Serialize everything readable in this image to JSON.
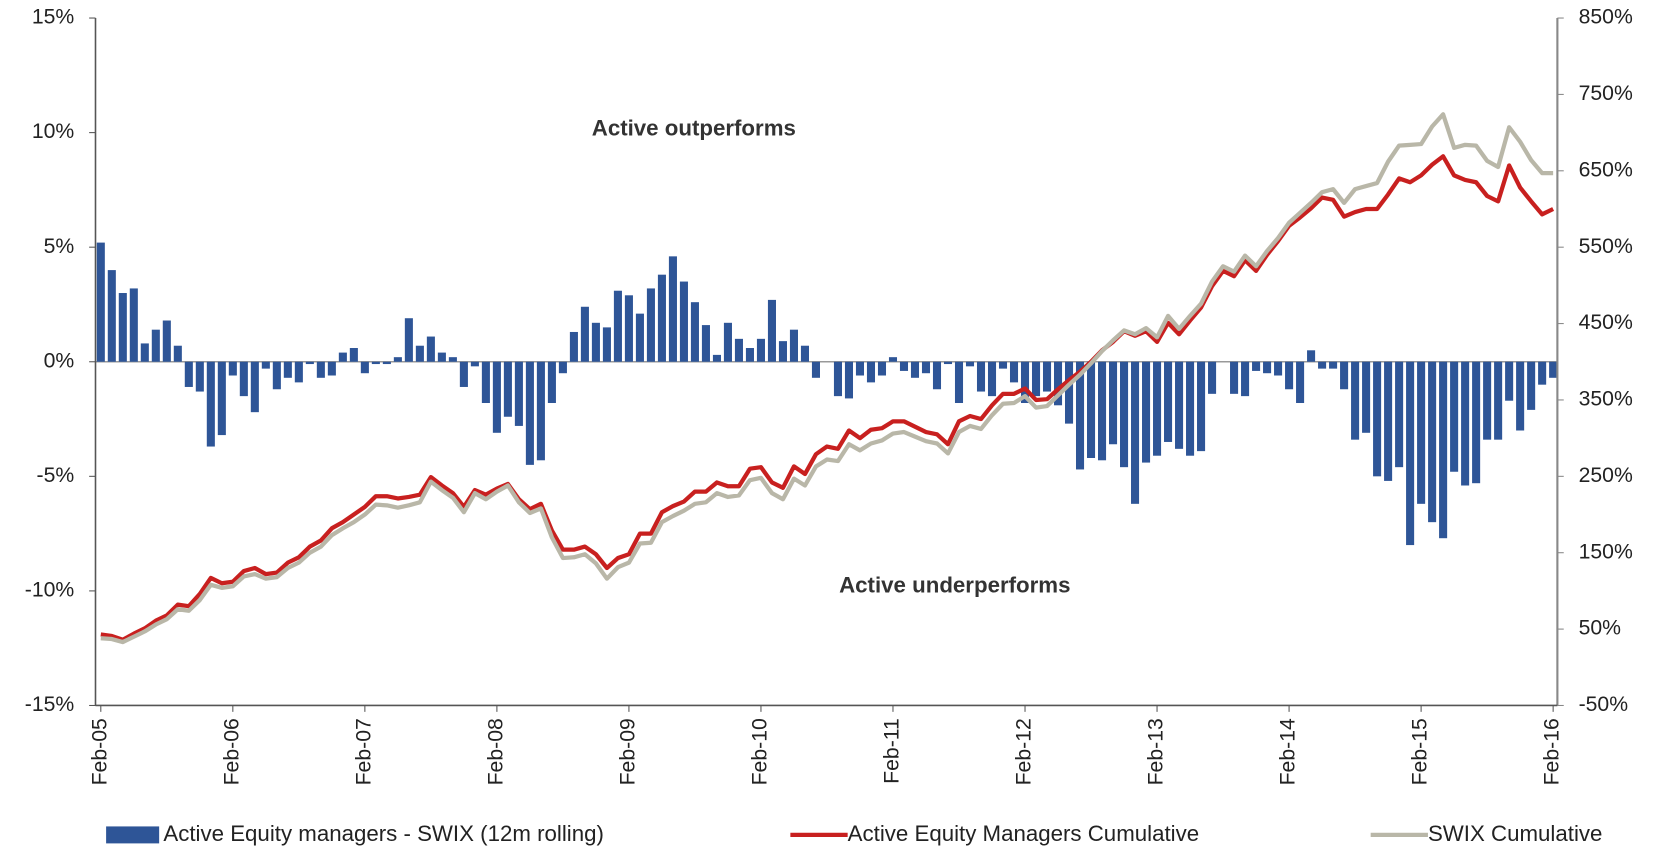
{
  "chart_data": {
    "type": "bar_line",
    "categories": [
      "Feb-05",
      null,
      null,
      null,
      null,
      null,
      null,
      null,
      null,
      null,
      null,
      null,
      "Feb-06",
      null,
      null,
      null,
      null,
      null,
      null,
      null,
      null,
      null,
      null,
      null,
      "Feb-07",
      null,
      null,
      null,
      null,
      null,
      null,
      null,
      null,
      null,
      null,
      null,
      "Feb-08",
      null,
      null,
      null,
      null,
      null,
      null,
      null,
      null,
      null,
      null,
      null,
      "Feb-09",
      null,
      null,
      null,
      null,
      null,
      null,
      null,
      null,
      null,
      null,
      null,
      "Feb-10",
      null,
      null,
      null,
      null,
      null,
      null,
      null,
      null,
      null,
      null,
      null,
      "Feb-11",
      null,
      null,
      null,
      null,
      null,
      null,
      null,
      null,
      null,
      null,
      null,
      "Feb-12",
      null,
      null,
      null,
      null,
      null,
      null,
      null,
      null,
      null,
      null,
      null,
      "Feb-13",
      null,
      null,
      null,
      null,
      null,
      null,
      null,
      null,
      null,
      null,
      null,
      "Feb-14",
      null,
      null,
      null,
      null,
      null,
      null,
      null,
      null,
      null,
      null,
      null,
      "Feb-15",
      null,
      null,
      null,
      null,
      null,
      null,
      null,
      null,
      null,
      null,
      null,
      "Feb-16"
    ],
    "series": [
      {
        "name": "Active Equity managers - SWIX (12m rolling)",
        "type": "bar",
        "color": "#2e5597",
        "values": [
          5.2,
          4.0,
          3.0,
          3.2,
          0.8,
          1.4,
          1.8,
          0.7,
          -1.1,
          -1.3,
          -3.7,
          -3.2,
          -0.6,
          -1.5,
          -2.2,
          -0.3,
          -1.2,
          -0.7,
          -0.9,
          -0.1,
          -0.7,
          -0.6,
          0.4,
          0.6,
          -0.5,
          -0.1,
          -0.1,
          0.2,
          1.9,
          0.7,
          1.1,
          0.4,
          0.2,
          -1.1,
          -0.2,
          -1.8,
          -3.1,
          -2.4,
          -2.8,
          -4.5,
          -4.3,
          -1.8,
          -0.5,
          1.3,
          2.4,
          1.7,
          1.5,
          3.1,
          2.9,
          2.1,
          3.2,
          3.8,
          4.6,
          3.5,
          2.6,
          1.6,
          0.3,
          1.7,
          1.0,
          0.6,
          1.0,
          2.7,
          0.9,
          1.4,
          0.7,
          -0.7,
          0.0,
          -1.5,
          -1.6,
          -0.6,
          -0.9,
          -0.6,
          0.2,
          -0.4,
          -0.7,
          -0.5,
          -1.2,
          -0.1,
          -1.8,
          -0.2,
          -1.3,
          -1.5,
          -0.3,
          -0.9,
          -1.8,
          -1.5,
          -1.3,
          -1.9,
          -2.7,
          -4.7,
          -4.2,
          -4.3,
          -3.6,
          -4.6,
          -6.2,
          -4.4,
          -4.1,
          -3.5,
          -3.8,
          -4.1,
          -3.9,
          -1.4,
          0.0,
          -1.4,
          -1.5,
          -0.4,
          -0.5,
          -0.6,
          -1.2,
          -1.8,
          0.5,
          -0.3,
          -0.3,
          -1.2,
          -3.4,
          -3.1,
          -5.0,
          -5.2,
          -4.6,
          -8.0,
          -6.2,
          -7.0,
          -7.7,
          -4.8,
          -5.4,
          -5.3,
          -3.4,
          -3.4,
          -1.7,
          -3.0,
          -2.1,
          -1.0,
          -0.7
        ]
      },
      {
        "name": "Active Equity Managers Cumulative",
        "type": "line",
        "axis": "y2",
        "color": "#c8201f",
        "values": [
          43,
          41,
          36,
          44,
          51,
          61,
          68,
          82,
          80,
          96,
          117,
          110,
          112,
          126,
          130,
          122,
          124,
          137,
          144,
          158,
          166,
          182,
          190,
          200,
          210,
          224,
          224,
          221,
          223,
          226,
          249,
          238,
          228,
          210,
          232,
          226,
          234,
          240,
          220,
          207,
          214,
          179,
          154,
          154,
          158,
          148,
          130,
          143,
          148,
          175,
          175,
          203,
          211,
          217,
          230,
          230,
          242,
          237,
          237,
          260,
          262,
          242,
          235,
          263,
          253,
          279,
          289,
          286,
          310,
          300,
          311,
          313,
          322,
          322,
          315,
          308,
          305,
          292,
          322,
          329,
          325,
          343,
          358,
          358,
          365,
          350,
          351,
          364,
          376,
          387,
          400,
          415,
          426,
          440,
          434,
          440,
          426,
          451,
          436,
          454,
          471,
          499,
          519,
          512,
          533,
          519,
          540,
          558,
          578,
          589,
          601,
          615,
          612,
          590,
          596,
          600,
          600,
          619,
          640,
          635,
          644,
          658,
          669,
          644,
          638,
          635,
          617,
          610,
          657,
          628,
          610,
          593,
          600
        ]
      },
      {
        "name": "SWIX Cumulative",
        "type": "line",
        "axis": "y2",
        "color": "#b9b7a8",
        "values": [
          38,
          37,
          33,
          40,
          47,
          56,
          63,
          76,
          74,
          88,
          108,
          104,
          106,
          119,
          122,
          116,
          118,
          130,
          137,
          150,
          158,
          173,
          182,
          190,
          200,
          213,
          212,
          209,
          212,
          216,
          243,
          232,
          222,
          203,
          228,
          220,
          230,
          238,
          216,
          202,
          208,
          170,
          143,
          144,
          148,
          136,
          116,
          131,
          137,
          162,
          163,
          190,
          198,
          205,
          214,
          216,
          228,
          223,
          225,
          245,
          248,
          228,
          220,
          247,
          238,
          263,
          272,
          270,
          292,
          284,
          293,
          297,
          306,
          308,
          302,
          296,
          293,
          280,
          308,
          316,
          312,
          330,
          345,
          346,
          355,
          340,
          342,
          356,
          370,
          383,
          398,
          414,
          428,
          441,
          436,
          444,
          432,
          460,
          443,
          460,
          476,
          505,
          525,
          518,
          539,
          525,
          545,
          562,
          582,
          595,
          608,
          622,
          626,
          608,
          626,
          630,
          634,
          662,
          683,
          684,
          685,
          708,
          724,
          680,
          684,
          683,
          663,
          655,
          707,
          688,
          664,
          647,
          647
        ]
      }
    ],
    "ylim": [
      -15,
      15
    ],
    "yticks": [
      {
        "value": -15,
        "label": "-15%"
      },
      {
        "value": -10,
        "label": "-10%"
      },
      {
        "value": -5,
        "label": "-5%"
      },
      {
        "value": 0,
        "label": "0%"
      },
      {
        "value": 5,
        "label": "5%"
      },
      {
        "value": 10,
        "label": "10%"
      },
      {
        "value": 15,
        "label": "15%"
      }
    ],
    "y2lim": [
      -50,
      850
    ],
    "y2ticks": [
      {
        "value": -50,
        "label": "-50%"
      },
      {
        "value": 50,
        "label": "50%"
      },
      {
        "value": 150,
        "label": "150%"
      },
      {
        "value": 250,
        "label": "250%"
      },
      {
        "value": 350,
        "label": "350%"
      },
      {
        "value": 450,
        "label": "450%"
      },
      {
        "value": 550,
        "label": "550%"
      },
      {
        "value": 650,
        "label": "650%"
      },
      {
        "value": 750,
        "label": "750%"
      },
      {
        "value": 850,
        "label": "850%"
      }
    ],
    "annotations": [
      "Active outperforms",
      "Active underperforms"
    ],
    "grid": false,
    "legend": "bottom"
  }
}
